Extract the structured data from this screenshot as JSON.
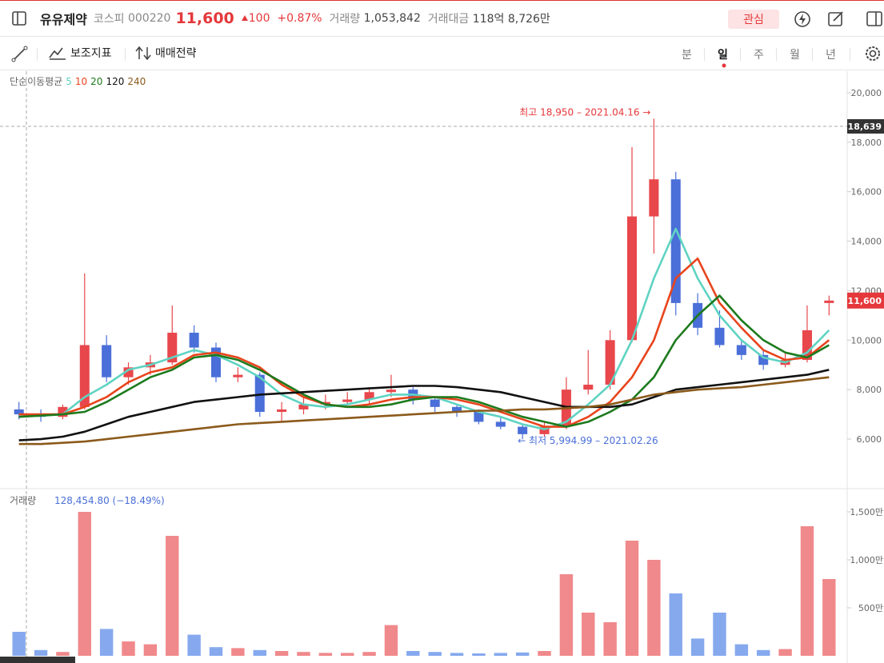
{
  "header": {
    "name": "유유제약",
    "market": "코스피",
    "code": "000220",
    "price": "11,600",
    "change": "100",
    "change_pct": "+0.87%",
    "volume_label": "거래량",
    "volume": "1,053,842",
    "amount_label": "거래대금",
    "amount": "118억 8,726만",
    "watch": "관심"
  },
  "toolbar": {
    "indicators": "보조지표",
    "strategy": "매매전략",
    "periods": [
      "분",
      "일",
      "주",
      "월",
      "년"
    ]
  },
  "chart_data": [
    {
      "type": "candlestick",
      "legend_title": "단순이동평균",
      "open": [
        7200,
        7000,
        6900,
        7300,
        9800,
        8500,
        8900,
        9100,
        10300,
        9700,
        8500,
        8600,
        7100,
        7200,
        7400,
        7500,
        7600,
        7900,
        8000,
        7600,
        7300,
        7100,
        6700,
        6500,
        6200,
        6500,
        8000,
        8200,
        10000,
        15000,
        16500,
        11500,
        10500,
        9800,
        9400,
        9000,
        9200,
        11500
      ],
      "high": [
        7500,
        7200,
        7400,
        12700,
        10200,
        9100,
        9400,
        11400,
        10600,
        9900,
        8900,
        8700,
        7500,
        7700,
        7800,
        7900,
        8100,
        8600,
        8100,
        7700,
        7400,
        7200,
        6900,
        6600,
        6700,
        8500,
        9600,
        10400,
        17800,
        18950,
        16800,
        11900,
        11200,
        10000,
        9600,
        9500,
        11400,
        11800
      ],
      "low": [
        6800,
        6700,
        6800,
        7200,
        8300,
        8200,
        8600,
        9000,
        9500,
        8300,
        8300,
        6900,
        6700,
        7000,
        7200,
        7300,
        7400,
        7700,
        7400,
        7100,
        6900,
        6600,
        6400,
        5995,
        6100,
        6400,
        7800,
        8000,
        9900,
        13500,
        11000,
        10200,
        9700,
        9200,
        8800,
        8900,
        9100,
        11000
      ],
      "close": [
        7000,
        6900,
        7300,
        9800,
        8500,
        8900,
        9100,
        10300,
        9700,
        8500,
        8600,
        7100,
        7200,
        7400,
        7500,
        7600,
        7900,
        8000,
        7600,
        7300,
        7100,
        6700,
        6500,
        6200,
        6500,
        8000,
        8200,
        10000,
        15000,
        16500,
        11500,
        10500,
        9800,
        9400,
        9000,
        9200,
        10400,
        11600
      ],
      "up_color": "#e8474c",
      "down_color": "#4a6fd8",
      "series": [
        {
          "name": "5",
          "color": "#5fd3c2",
          "values": [
            7000,
            6950,
            7000,
            7700,
            8200,
            8800,
            9000,
            9300,
            9600,
            9400,
            9000,
            8500,
            7800,
            7400,
            7300,
            7400,
            7600,
            7800,
            7800,
            7700,
            7400,
            7100,
            6900,
            6600,
            6400,
            6700,
            7400,
            8200,
            10000,
            12500,
            14500,
            12500,
            11000,
            10000,
            9300,
            9100,
            9500,
            10400
          ]
        },
        {
          "name": "10",
          "color": "#e8441c",
          "values": [
            7000,
            7000,
            7000,
            7300,
            7700,
            8300,
            8700,
            8900,
            9400,
            9500,
            9300,
            8900,
            8200,
            7700,
            7400,
            7300,
            7400,
            7600,
            7700,
            7700,
            7600,
            7400,
            7100,
            6800,
            6500,
            6500,
            6900,
            7500,
            8500,
            10000,
            12500,
            13300,
            11500,
            10500,
            9600,
            9200,
            9300,
            10000
          ]
        },
        {
          "name": "20",
          "color": "#1d7a1d",
          "values": [
            6900,
            6950,
            7000,
            7100,
            7500,
            8000,
            8500,
            8800,
            9300,
            9400,
            9200,
            8800,
            8300,
            7800,
            7400,
            7300,
            7300,
            7400,
            7600,
            7700,
            7700,
            7500,
            7200,
            6900,
            6700,
            6500,
            6700,
            7100,
            7600,
            8500,
            10000,
            11000,
            11800,
            10800,
            10000,
            9500,
            9300,
            9800
          ]
        },
        {
          "name": "120",
          "color": "#111111",
          "values": [
            5950,
            6000,
            6100,
            6300,
            6600,
            6900,
            7100,
            7300,
            7500,
            7600,
            7700,
            7800,
            7850,
            7900,
            7950,
            8000,
            8050,
            8100,
            8150,
            8150,
            8100,
            8000,
            7900,
            7700,
            7500,
            7300,
            7300,
            7300,
            7400,
            7700,
            8000,
            8100,
            8200,
            8300,
            8400,
            8500,
            8600,
            8800
          ]
        },
        {
          "name": "240",
          "color": "#8b5a1b",
          "values": [
            5800,
            5800,
            5850,
            5900,
            6000,
            6100,
            6200,
            6300,
            6400,
            6500,
            6600,
            6650,
            6700,
            6750,
            6800,
            6850,
            6900,
            6950,
            7000,
            7050,
            7100,
            7150,
            7150,
            7200,
            7200,
            7250,
            7300,
            7400,
            7600,
            7800,
            7900,
            8000,
            8050,
            8100,
            8200,
            8300,
            8400,
            8500
          ]
        }
      ],
      "ylim": [
        4030,
        20870
      ],
      "yticks": [
        {
          "value": 6000,
          "label": "6,000"
        },
        {
          "value": 8000,
          "label": "8,000"
        },
        {
          "value": 10000,
          "label": "10,000"
        },
        {
          "value": 12000,
          "label": "12,000"
        },
        {
          "value": 14000,
          "label": "14,000"
        },
        {
          "value": 16000,
          "label": "16,000"
        },
        {
          "value": 18000,
          "label": "18,000"
        },
        {
          "value": 20000,
          "label": "20,000"
        }
      ],
      "annotations": [
        {
          "text": "최고 18,950 – 2021.04.16 →",
          "value": 18950,
          "color": "#e5383b"
        },
        {
          "text": "← 최저 5,994.99 – 2021.02.26",
          "value": 5994.99,
          "color": "#4a6fd8"
        }
      ],
      "crosshair": {
        "value": 18639,
        "label": "18,639"
      },
      "last_price": {
        "value": 11600,
        "label": "11,600"
      }
    },
    {
      "type": "bar",
      "title": "거래량",
      "subtitle": "128,454.80 (−18.49%)",
      "values": [
        250,
        60,
        40,
        1500,
        280,
        150,
        120,
        1250,
        220,
        90,
        80,
        60,
        50,
        40,
        30,
        30,
        40,
        320,
        50,
        40,
        30,
        25,
        30,
        35,
        50,
        850,
        450,
        350,
        1200,
        1000,
        650,
        180,
        450,
        120,
        60,
        70,
        1350,
        800
      ],
      "up_color": "#f0898b",
      "down_color": "#86a9ee",
      "ylim": [
        0,
        1650
      ],
      "yticks": [
        {
          "value": 500,
          "label": "500만"
        },
        {
          "value": 1000,
          "label": "1,000만"
        },
        {
          "value": 1500,
          "label": "1,500만"
        }
      ]
    }
  ]
}
